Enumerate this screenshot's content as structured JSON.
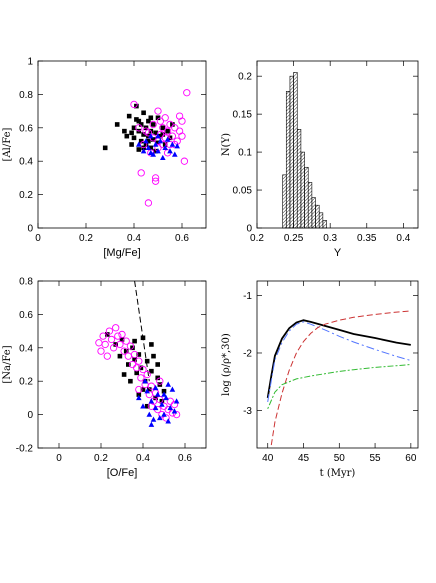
{
  "chart_data": [
    {
      "id": "al-mg",
      "type": "scatter",
      "xlabel": "[Mg/Fe]",
      "ylabel": "[Al/Fe]",
      "xlim": [
        0,
        0.7
      ],
      "ylim": [
        0,
        1
      ],
      "xticks": [
        0,
        0.2,
        0.4,
        0.6
      ],
      "yticks": [
        0,
        0.2,
        0.4,
        0.6,
        0.8,
        1
      ],
      "series": [
        {
          "marker": "filled-square",
          "color": "#000000",
          "points": [
            [
              0.28,
              0.48
            ],
            [
              0.33,
              0.62
            ],
            [
              0.36,
              0.58
            ],
            [
              0.37,
              0.55
            ],
            [
              0.38,
              0.67
            ],
            [
              0.39,
              0.5
            ],
            [
              0.4,
              0.6
            ],
            [
              0.4,
              0.54
            ],
            [
              0.41,
              0.65
            ],
            [
              0.41,
              0.73
            ],
            [
              0.42,
              0.47
            ],
            [
              0.42,
              0.58
            ],
            [
              0.43,
              0.52
            ],
            [
              0.43,
              0.62
            ],
            [
              0.44,
              0.56
            ],
            [
              0.44,
              0.69
            ],
            [
              0.45,
              0.5
            ],
            [
              0.45,
              0.6
            ],
            [
              0.46,
              0.55
            ],
            [
              0.46,
              0.64
            ],
            [
              0.47,
              0.48
            ],
            [
              0.47,
              0.58
            ],
            [
              0.48,
              0.53
            ],
            [
              0.48,
              0.62
            ],
            [
              0.49,
              0.57
            ],
            [
              0.5,
              0.51
            ],
            [
              0.5,
              0.66
            ],
            [
              0.51,
              0.55
            ],
            [
              0.52,
              0.6
            ],
            [
              0.53,
              0.5
            ],
            [
              0.54,
              0.58
            ],
            [
              0.55,
              0.54
            ],
            [
              0.56,
              0.62
            ],
            [
              0.39,
              0.57
            ],
            [
              0.42,
              0.64
            ],
            [
              0.46,
              0.52
            ],
            [
              0.49,
              0.46
            ],
            [
              0.52,
              0.56
            ],
            [
              0.44,
              0.48
            ],
            [
              0.47,
              0.66
            ]
          ]
        },
        {
          "marker": "open-circle",
          "color": "#ff00ff",
          "points": [
            [
              0.4,
              0.74
            ],
            [
              0.42,
              0.6
            ],
            [
              0.43,
              0.33
            ],
            [
              0.45,
              0.58
            ],
            [
              0.46,
              0.15
            ],
            [
              0.47,
              0.45
            ],
            [
              0.48,
              0.62
            ],
            [
              0.49,
              0.3
            ],
            [
              0.49,
              0.28
            ],
            [
              0.5,
              0.52
            ],
            [
              0.5,
              0.7
            ],
            [
              0.51,
              0.56
            ],
            [
              0.51,
              0.64
            ],
            [
              0.52,
              0.5
            ],
            [
              0.52,
              0.6
            ],
            [
              0.53,
              0.54
            ],
            [
              0.53,
              0.66
            ],
            [
              0.54,
              0.58
            ],
            [
              0.55,
              0.5
            ],
            [
              0.55,
              0.62
            ],
            [
              0.56,
              0.55
            ],
            [
              0.57,
              0.6
            ],
            [
              0.58,
              0.52
            ],
            [
              0.59,
              0.58
            ],
            [
              0.6,
              0.55
            ],
            [
              0.6,
              0.64
            ],
            [
              0.61,
              0.4
            ],
            [
              0.62,
              0.81
            ],
            [
              0.46,
              0.57
            ],
            [
              0.48,
              0.54
            ],
            [
              0.5,
              0.48
            ],
            [
              0.54,
              0.45
            ],
            [
              0.57,
              0.5
            ],
            [
              0.44,
              0.5
            ],
            [
              0.59,
              0.67
            ]
          ]
        },
        {
          "marker": "filled-triangle",
          "color": "#0000ff",
          "points": [
            [
              0.42,
              0.5
            ],
            [
              0.44,
              0.46
            ],
            [
              0.45,
              0.52
            ],
            [
              0.46,
              0.48
            ],
            [
              0.47,
              0.55
            ],
            [
              0.48,
              0.44
            ],
            [
              0.49,
              0.5
            ],
            [
              0.5,
              0.46
            ],
            [
              0.51,
              0.52
            ],
            [
              0.52,
              0.42
            ],
            [
              0.53,
              0.48
            ],
            [
              0.54,
              0.53
            ],
            [
              0.55,
              0.46
            ],
            [
              0.56,
              0.5
            ],
            [
              0.57,
              0.44
            ],
            [
              0.58,
              0.49
            ],
            [
              0.5,
              0.55
            ],
            [
              0.47,
              0.45
            ]
          ]
        }
      ]
    },
    {
      "id": "ny-hist",
      "type": "bar",
      "xlabel": "Y",
      "ylabel": "N(Y)",
      "xlim": [
        0.2,
        0.42
      ],
      "ylim": [
        0,
        0.22
      ],
      "xticks": [
        0.2,
        0.25,
        0.3,
        0.35,
        0.4
      ],
      "yticks": [
        0,
        0.05,
        0.1,
        0.15,
        0.2
      ],
      "bin_width": 0.005,
      "bins": [
        0.235,
        0.24,
        0.245,
        0.25,
        0.255,
        0.26,
        0.265,
        0.27,
        0.275,
        0.28,
        0.285,
        0.29
      ],
      "values": [
        0.07,
        0.18,
        0.2,
        0.205,
        0.13,
        0.1,
        0.08,
        0.06,
        0.04,
        0.03,
        0.02,
        0.01
      ]
    },
    {
      "id": "na-o",
      "type": "scatter",
      "xlabel": "[O/Fe]",
      "ylabel": "[Na/Fe]",
      "xlim": [
        -0.1,
        0.7
      ],
      "ylim": [
        -0.2,
        0.8
      ],
      "xticks": [
        0,
        0.2,
        0.4,
        0.6
      ],
      "yticks": [
        -0.2,
        0,
        0.2,
        0.4,
        0.6,
        0.8
      ],
      "dashed_line": [
        [
          0.36,
          0.8
        ],
        [
          0.43,
          0.2
        ]
      ],
      "series": [
        {
          "marker": "filled-square",
          "color": "#000000",
          "points": [
            [
              0.23,
              0.48
            ],
            [
              0.27,
              0.42
            ],
            [
              0.3,
              0.45
            ],
            [
              0.32,
              0.38
            ],
            [
              0.33,
              0.3
            ],
            [
              0.35,
              0.4
            ],
            [
              0.36,
              0.33
            ],
            [
              0.37,
              0.25
            ],
            [
              0.38,
              0.36
            ],
            [
              0.39,
              0.28
            ],
            [
              0.4,
              0.46
            ],
            [
              0.41,
              0.2
            ],
            [
              0.42,
              0.32
            ],
            [
              0.43,
              0.15
            ],
            [
              0.44,
              0.26
            ],
            [
              0.45,
              0.35
            ],
            [
              0.46,
              0.1
            ],
            [
              0.47,
              0.22
            ],
            [
              0.48,
              0.18
            ],
            [
              0.49,
              0.08
            ],
            [
              0.5,
              0.14
            ],
            [
              0.34,
              0.2
            ],
            [
              0.38,
              0.12
            ],
            [
              0.42,
              0.05
            ],
            [
              0.36,
              0.44
            ],
            [
              0.29,
              0.35
            ],
            [
              0.44,
              0.42
            ],
            [
              0.47,
              0.3
            ],
            [
              0.31,
              0.24
            ],
            [
              0.4,
              0.15
            ]
          ]
        },
        {
          "marker": "open-circle",
          "color": "#ff00ff",
          "points": [
            [
              0.19,
              0.43
            ],
            [
              0.2,
              0.38
            ],
            [
              0.21,
              0.47
            ],
            [
              0.22,
              0.42
            ],
            [
              0.23,
              0.35
            ],
            [
              0.24,
              0.5
            ],
            [
              0.25,
              0.45
            ],
            [
              0.26,
              0.4
            ],
            [
              0.27,
              0.52
            ],
            [
              0.28,
              0.47
            ],
            [
              0.29,
              0.42
            ],
            [
              0.3,
              0.48
            ],
            [
              0.31,
              0.38
            ],
            [
              0.32,
              0.44
            ],
            [
              0.33,
              0.35
            ],
            [
              0.34,
              0.41
            ],
            [
              0.35,
              0.3
            ],
            [
              0.36,
              0.36
            ],
            [
              0.37,
              0.28
            ],
            [
              0.38,
              0.32
            ],
            [
              0.39,
              0.22
            ],
            [
              0.4,
              0.27
            ],
            [
              0.41,
              0.18
            ],
            [
              0.42,
              0.24
            ],
            [
              0.43,
              0.12
            ],
            [
              0.44,
              0.17
            ],
            [
              0.45,
              0.08
            ],
            [
              0.46,
              0.13
            ],
            [
              0.47,
              0.03
            ],
            [
              0.48,
              0.09
            ],
            [
              0.49,
              0.0
            ],
            [
              0.5,
              0.05
            ],
            [
              0.51,
              -0.02
            ],
            [
              0.52,
              0.03
            ],
            [
              0.53,
              0.08
            ],
            [
              0.54,
              0.01
            ],
            [
              0.55,
              0.06
            ],
            [
              0.56,
              0.0
            ],
            [
              0.38,
              0.15
            ],
            [
              0.44,
              0.05
            ],
            [
              0.48,
              0.2
            ]
          ]
        },
        {
          "marker": "filled-triangle",
          "color": "#0000ff",
          "points": [
            [
              0.38,
              0.1
            ],
            [
              0.4,
              0.05
            ],
            [
              0.42,
              0.14
            ],
            [
              0.43,
              0.0
            ],
            [
              0.44,
              0.08
            ],
            [
              0.45,
              -0.03
            ],
            [
              0.46,
              0.04
            ],
            [
              0.47,
              0.12
            ],
            [
              0.48,
              -0.02
            ],
            [
              0.49,
              0.06
            ],
            [
              0.5,
              0.0
            ],
            [
              0.51,
              0.1
            ],
            [
              0.52,
              -0.04
            ],
            [
              0.53,
              0.04
            ],
            [
              0.54,
              0.15
            ],
            [
              0.55,
              0.02
            ],
            [
              0.56,
              0.08
            ],
            [
              0.46,
              0.16
            ],
            [
              0.5,
              0.12
            ],
            [
              0.41,
              0.2
            ],
            [
              0.44,
              -0.06
            ],
            [
              0.52,
              0.18
            ]
          ]
        }
      ]
    },
    {
      "id": "log-rho",
      "type": "line",
      "xlabel": "t (Myr)",
      "ylabel": "log (ρ/ρ*,30)",
      "xlim": [
        38.5,
        61
      ],
      "ylim": [
        -3.65,
        -0.75
      ],
      "xticks": [
        40,
        45,
        50,
        55,
        60
      ],
      "yticks": [
        -3,
        -2,
        -1
      ],
      "series": [
        {
          "style": "solid",
          "color": "#000000",
          "width": 1.8,
          "x": [
            40,
            40.5,
            41,
            42,
            43,
            44,
            45,
            46,
            48,
            50,
            52,
            55,
            58,
            60
          ],
          "y": [
            -2.78,
            -2.4,
            -2.05,
            -1.75,
            -1.57,
            -1.47,
            -1.43,
            -1.46,
            -1.53,
            -1.6,
            -1.67,
            -1.74,
            -1.82,
            -1.86
          ]
        },
        {
          "style": "dashdot",
          "color": "#5577ff",
          "width": 1,
          "x": [
            40,
            40.5,
            41,
            42,
            43,
            44,
            45,
            46,
            48,
            50,
            52,
            55,
            58,
            60
          ],
          "y": [
            -2.85,
            -2.48,
            -2.12,
            -1.82,
            -1.62,
            -1.5,
            -1.46,
            -1.5,
            -1.6,
            -1.71,
            -1.81,
            -1.94,
            -2.06,
            -2.13
          ]
        },
        {
          "style": "dashed",
          "color": "#cc3333",
          "width": 1,
          "x": [
            40.5,
            41,
            42,
            43,
            44,
            45,
            46,
            47,
            48,
            50,
            52,
            55,
            58,
            60
          ],
          "y": [
            -3.6,
            -3.2,
            -2.7,
            -2.3,
            -2.0,
            -1.8,
            -1.66,
            -1.56,
            -1.5,
            -1.43,
            -1.38,
            -1.33,
            -1.29,
            -1.27
          ]
        },
        {
          "style": "dotdash",
          "color": "#33bb33",
          "width": 1,
          "x": [
            40,
            41,
            42,
            44,
            46,
            48,
            50,
            52,
            55,
            58,
            60
          ],
          "y": [
            -2.97,
            -2.68,
            -2.55,
            -2.45,
            -2.4,
            -2.36,
            -2.32,
            -2.29,
            -2.25,
            -2.22,
            -2.2
          ]
        }
      ]
    }
  ]
}
